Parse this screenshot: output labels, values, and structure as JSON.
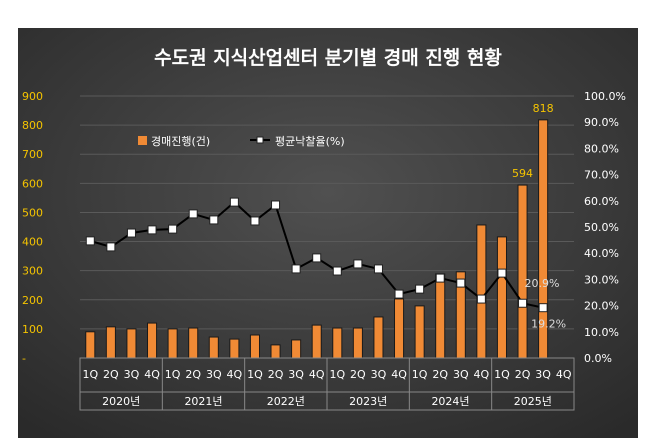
{
  "chart_data": {
    "type": "bar",
    "title": "수도권 지식산업센터 분기별 경매 진행 현황",
    "categories": [
      "1Q",
      "2Q",
      "3Q",
      "4Q",
      "1Q",
      "2Q",
      "3Q",
      "4Q",
      "1Q",
      "2Q",
      "3Q",
      "4Q",
      "1Q",
      "2Q",
      "3Q",
      "4Q",
      "1Q",
      "2Q",
      "3Q",
      "4Q",
      "1Q",
      "2Q",
      "3Q",
      "4Q"
    ],
    "years": [
      "2020년",
      "2021년",
      "2022년",
      "2023년",
      "2024년",
      "2025년"
    ],
    "series": [
      {
        "name": "경매진행(건)",
        "type": "bar",
        "axis": "left",
        "color": "#f08a35",
        "values": [
          90,
          107,
          100,
          120,
          100,
          103,
          72,
          65,
          79,
          45,
          62,
          113,
          103,
          103,
          141,
          203,
          179,
          289,
          296,
          457,
          416,
          594,
          818,
          null
        ]
      },
      {
        "name": "평균낙찰율(%)",
        "type": "line",
        "axis": "right",
        "color": "#000000",
        "values": [
          44.7,
          42.4,
          47.7,
          48.9,
          49.2,
          55.0,
          52.7,
          59.5,
          52.3,
          58.4,
          34.0,
          38.2,
          33.2,
          35.9,
          34.0,
          24.4,
          26.3,
          30.5,
          28.6,
          22.5,
          32.4,
          20.9,
          19.2,
          null
        ]
      }
    ],
    "data_labels": {
      "bar": {
        "21": "594",
        "22": "818"
      },
      "line": {
        "21": "20.9%",
        "22": "19.2%"
      }
    },
    "left_axis": {
      "ylim": [
        0,
        900
      ],
      "ticks": [
        "-",
        "100",
        "200",
        "300",
        "400",
        "500",
        "600",
        "700",
        "800",
        "900"
      ],
      "color": "#f5c400"
    },
    "right_axis": {
      "ylim": [
        0,
        100
      ],
      "ticks": [
        "0.0%",
        "10.0%",
        "20.0%",
        "30.0%",
        "40.0%",
        "50.0%",
        "60.0%",
        "70.0%",
        "80.0%",
        "90.0%",
        "100.0%"
      ]
    },
    "grid": true,
    "legend": "top-left",
    "background": "#3c3c3c"
  }
}
